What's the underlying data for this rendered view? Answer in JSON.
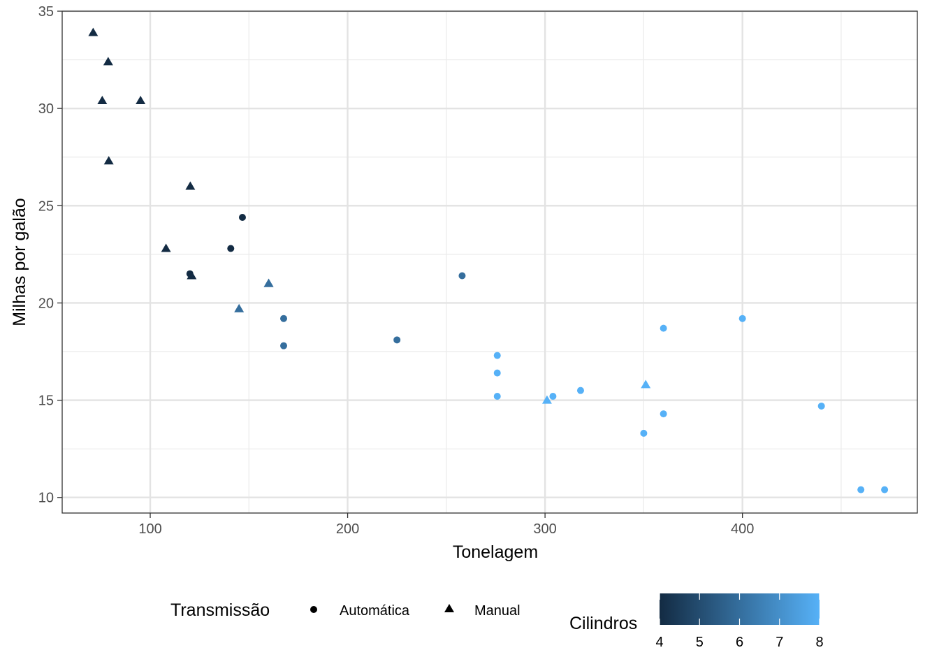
{
  "chart_data": {
    "type": "scatter",
    "title": "",
    "xlabel": "Tonelagem",
    "ylabel": "Milhas por galão",
    "xlim": [
      55.4,
      488.6
    ],
    "ylim": [
      9.2,
      35.0
    ],
    "xticks": [
      100,
      200,
      300,
      400
    ],
    "yticks": [
      10,
      15,
      20,
      25,
      30,
      35
    ],
    "xminor": [
      150,
      250,
      350,
      450
    ],
    "yminor": [
      12.5,
      17.5,
      22.5,
      27.5,
      32.5
    ],
    "grid": true,
    "legend_position": "bottom",
    "shape_legend": {
      "title": "Transmissão",
      "items": [
        {
          "label": "Automática",
          "shape": "circle"
        },
        {
          "label": "Manual",
          "shape": "triangle"
        }
      ]
    },
    "color_legend": {
      "title": "Cilindros",
      "min": 4,
      "max": 8,
      "ticks": [
        "4",
        "5",
        "6",
        "7",
        "8"
      ],
      "low_color": "#132B43",
      "high_color": "#56B1F7"
    },
    "points": [
      {
        "x": 160,
        "y": 21.0,
        "cyl": 6,
        "transmission": "Manual"
      },
      {
        "x": 160,
        "y": 21.0,
        "cyl": 6,
        "transmission": "Manual"
      },
      {
        "x": 108,
        "y": 22.8,
        "cyl": 4,
        "transmission": "Manual"
      },
      {
        "x": 258,
        "y": 21.4,
        "cyl": 6,
        "transmission": "Automática"
      },
      {
        "x": 360,
        "y": 18.7,
        "cyl": 8,
        "transmission": "Automática"
      },
      {
        "x": 225,
        "y": 18.1,
        "cyl": 6,
        "transmission": "Automática"
      },
      {
        "x": 360,
        "y": 14.3,
        "cyl": 8,
        "transmission": "Automática"
      },
      {
        "x": 146.7,
        "y": 24.4,
        "cyl": 4,
        "transmission": "Automática"
      },
      {
        "x": 140.8,
        "y": 22.8,
        "cyl": 4,
        "transmission": "Automática"
      },
      {
        "x": 167.6,
        "y": 19.2,
        "cyl": 6,
        "transmission": "Automática"
      },
      {
        "x": 167.6,
        "y": 17.8,
        "cyl": 6,
        "transmission": "Automática"
      },
      {
        "x": 275.8,
        "y": 16.4,
        "cyl": 8,
        "transmission": "Automática"
      },
      {
        "x": 275.8,
        "y": 17.3,
        "cyl": 8,
        "transmission": "Automática"
      },
      {
        "x": 275.8,
        "y": 15.2,
        "cyl": 8,
        "transmission": "Automática"
      },
      {
        "x": 472,
        "y": 10.4,
        "cyl": 8,
        "transmission": "Automática"
      },
      {
        "x": 460,
        "y": 10.4,
        "cyl": 8,
        "transmission": "Automática"
      },
      {
        "x": 440,
        "y": 14.7,
        "cyl": 8,
        "transmission": "Automática"
      },
      {
        "x": 78.7,
        "y": 32.4,
        "cyl": 4,
        "transmission": "Manual"
      },
      {
        "x": 75.7,
        "y": 30.4,
        "cyl": 4,
        "transmission": "Manual"
      },
      {
        "x": 71.1,
        "y": 33.9,
        "cyl": 4,
        "transmission": "Manual"
      },
      {
        "x": 120.1,
        "y": 21.5,
        "cyl": 4,
        "transmission": "Automática"
      },
      {
        "x": 318,
        "y": 15.5,
        "cyl": 8,
        "transmission": "Automática"
      },
      {
        "x": 304,
        "y": 15.2,
        "cyl": 8,
        "transmission": "Automática"
      },
      {
        "x": 350,
        "y": 13.3,
        "cyl": 8,
        "transmission": "Automática"
      },
      {
        "x": 400,
        "y": 19.2,
        "cyl": 8,
        "transmission": "Automática"
      },
      {
        "x": 79,
        "y": 27.3,
        "cyl": 4,
        "transmission": "Manual"
      },
      {
        "x": 120.3,
        "y": 26.0,
        "cyl": 4,
        "transmission": "Manual"
      },
      {
        "x": 95.1,
        "y": 30.4,
        "cyl": 4,
        "transmission": "Manual"
      },
      {
        "x": 351,
        "y": 15.8,
        "cyl": 8,
        "transmission": "Manual"
      },
      {
        "x": 145,
        "y": 19.7,
        "cyl": 6,
        "transmission": "Manual"
      },
      {
        "x": 301,
        "y": 15.0,
        "cyl": 8,
        "transmission": "Manual"
      },
      {
        "x": 121,
        "y": 21.4,
        "cyl": 4,
        "transmission": "Manual"
      }
    ]
  }
}
